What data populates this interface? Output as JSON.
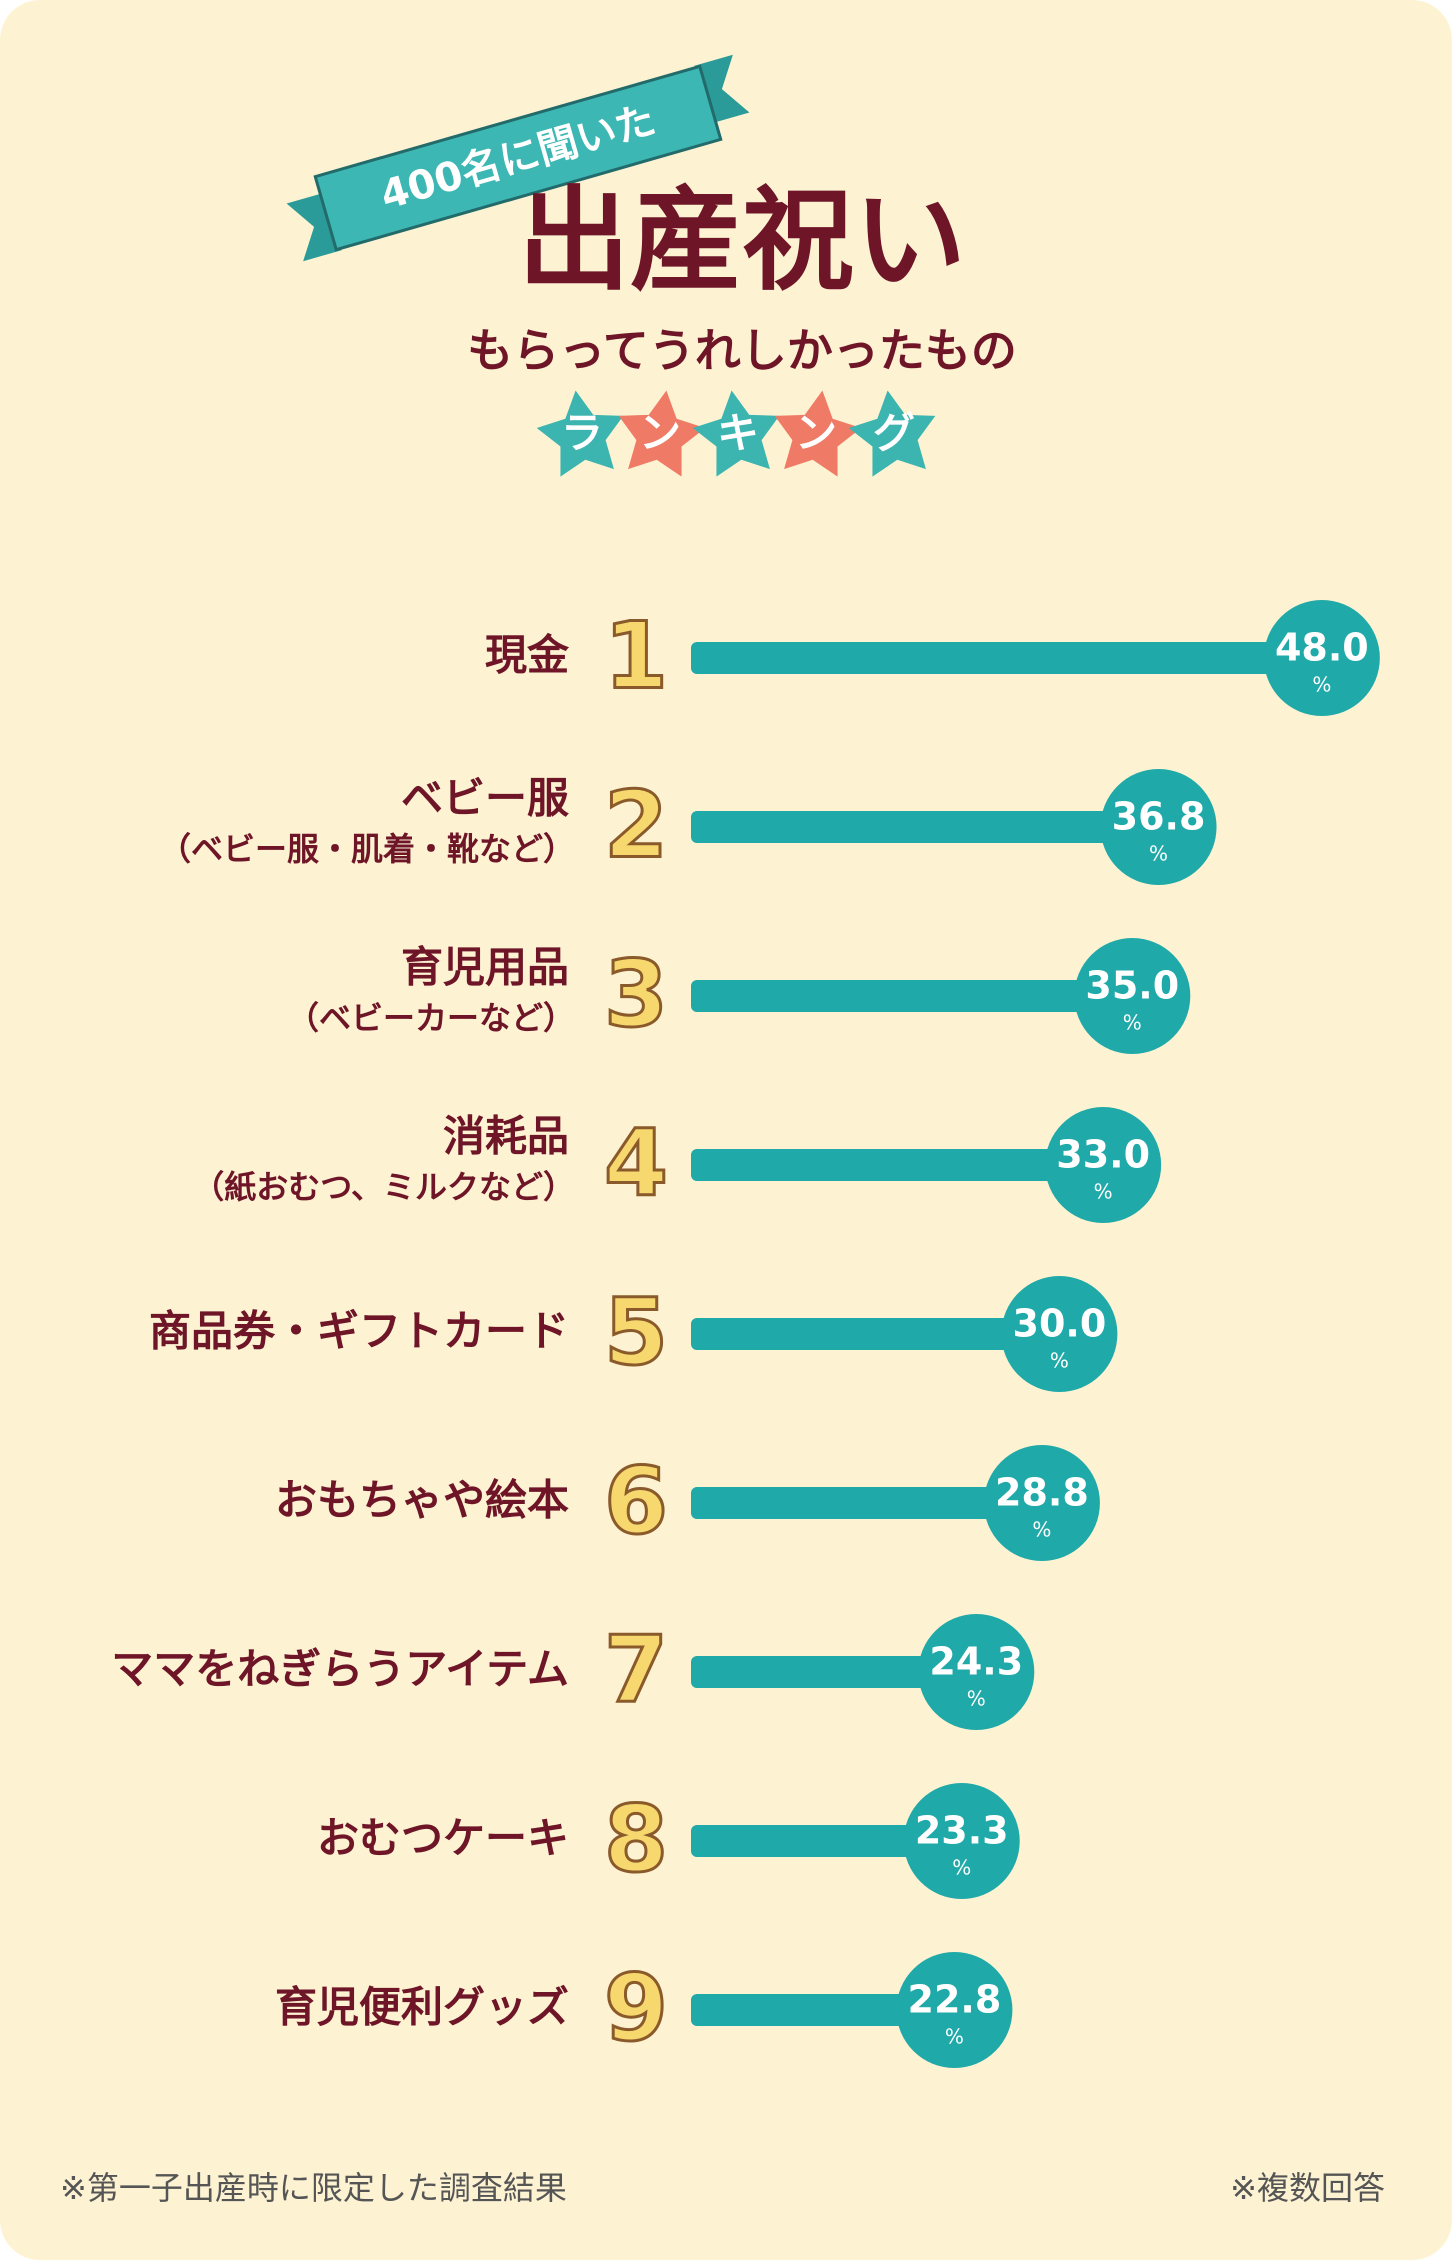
{
  "chart_data": {
    "type": "bar",
    "ribbon": "400名に聞いた",
    "title": "出産祝い",
    "subtitle": "もらってうれしかったもの",
    "badge": "ランキング",
    "ranks": [
      1,
      2,
      3,
      4,
      5,
      6,
      7,
      8,
      9
    ],
    "categories": [
      "現金",
      "ベビー服",
      "育児用品",
      "消耗品",
      "商品券・ギフトカード",
      "おもちゃや絵本",
      "ママをねぎらうアイテム",
      "おむつケーキ",
      "育児便利グッズ"
    ],
    "sublabels": [
      null,
      "（ベビー服・肌着・靴など）",
      "（ベビーカーなど）",
      "（紙おむつ、ミルクなど）",
      null,
      null,
      null,
      null,
      null
    ],
    "values": [
      48.0,
      36.8,
      35.0,
      33.0,
      30.0,
      28.8,
      24.3,
      23.3,
      22.8
    ],
    "value_labels": [
      "48.0",
      "36.8",
      "35.0",
      "33.0",
      "30.0",
      "28.8",
      "24.3",
      "23.3",
      "22.8"
    ],
    "unit": "%",
    "xlim": [
      0,
      50
    ],
    "color": "#1fa9a8",
    "footnote_left": "※第一子出産時に限定した調査結果",
    "footnote_right": "※複数回答"
  }
}
